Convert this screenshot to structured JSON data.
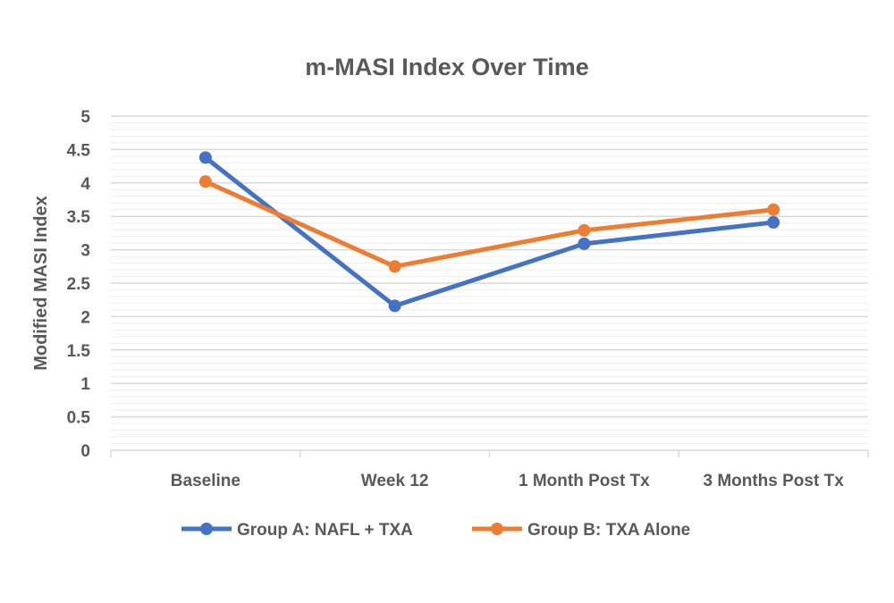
{
  "chart_data": {
    "type": "line",
    "title": "m-MASI Index Over Time",
    "xlabel": "",
    "ylabel": "Modified MASI Index",
    "categories": [
      "Baseline",
      "Week 12",
      "1 Month Post Tx",
      "3 Months Post Tx"
    ],
    "ylim": [
      0,
      5
    ],
    "yticks": [
      "0",
      "0.5",
      "1",
      "1.5",
      "2",
      "2.5",
      "3",
      "3.5",
      "4",
      "4.5",
      "5"
    ],
    "grid": true,
    "legend": "bottom",
    "series": [
      {
        "name": "Group A: NAFL + TXA",
        "color": "#4472C4",
        "values": [
          4.38,
          2.16,
          3.09,
          3.41
        ]
      },
      {
        "name": "Group B: TXA Alone",
        "color": "#ED7D31",
        "values": [
          4.02,
          2.75,
          3.29,
          3.6
        ]
      }
    ]
  }
}
